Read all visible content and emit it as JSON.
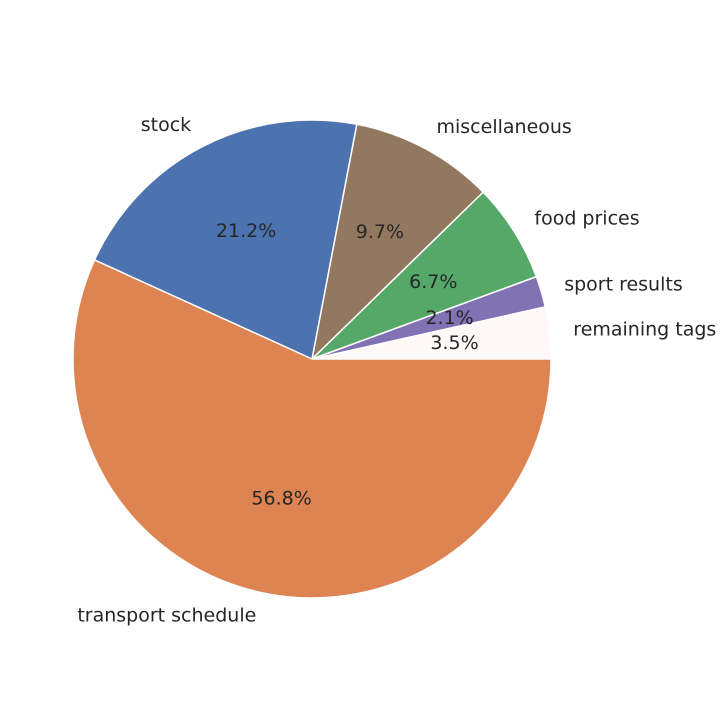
{
  "chart_data": {
    "type": "pie",
    "start_angle_deg": 0,
    "direction": "counterclockwise",
    "slices": [
      {
        "label": "remaining tags",
        "pct_label": "3.5%",
        "value": 3.5,
        "color": "#FFF8F8"
      },
      {
        "label": "sport results",
        "pct_label": "2.1%",
        "value": 2.1,
        "color": "#8172B3"
      },
      {
        "label": "food prices",
        "pct_label": "6.7%",
        "value": 6.7,
        "color": "#55A868"
      },
      {
        "label": "miscellaneous",
        "pct_label": "9.7%",
        "value": 9.7,
        "color": "#937860"
      },
      {
        "label": "stock",
        "pct_label": "21.2%",
        "value": 21.2,
        "color": "#4C72B0"
      },
      {
        "label": "transport schedule",
        "pct_label": "56.8%",
        "value": 56.8,
        "color": "#DD8452"
      }
    ]
  }
}
